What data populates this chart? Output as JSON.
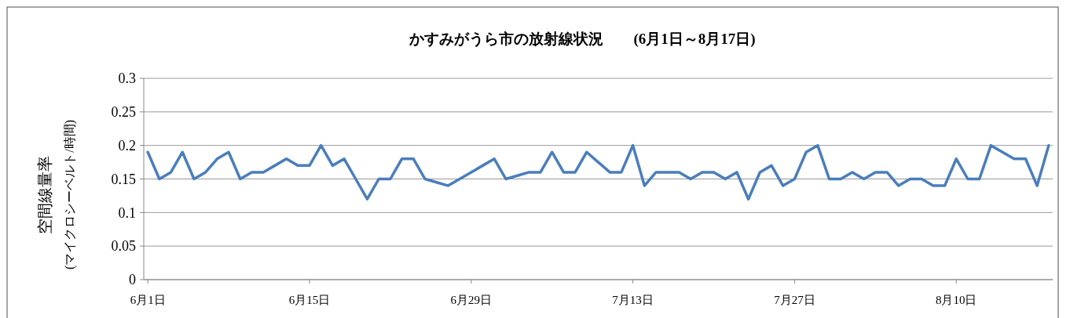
{
  "chart_data": {
    "type": "line",
    "title": "かすみがうら市の放射線状況　　(6月1日～8月17日)",
    "ylabel": "空間線量率\n(マイクロシーベルト/時間)",
    "categories": [
      "6月1日",
      null,
      null,
      null,
      null,
      null,
      null,
      null,
      null,
      null,
      null,
      null,
      null,
      null,
      "6月15日",
      null,
      null,
      null,
      null,
      null,
      null,
      null,
      null,
      null,
      null,
      null,
      null,
      null,
      "6月29日",
      null,
      null,
      null,
      null,
      null,
      null,
      null,
      null,
      null,
      null,
      null,
      null,
      null,
      "7月13日",
      null,
      null,
      null,
      null,
      null,
      null,
      null,
      null,
      null,
      null,
      null,
      null,
      null,
      "7月27日",
      null,
      null,
      null,
      null,
      null,
      null,
      null,
      null,
      null,
      null,
      null,
      null,
      null,
      "8月10日",
      null,
      null,
      null,
      null,
      null,
      null,
      null,
      null
    ],
    "series": [
      {
        "color": "#4a7ebb",
        "values": [
          0.19,
          0.15,
          0.16,
          0.19,
          0.15,
          0.16,
          0.18,
          0.19,
          0.15,
          0.16,
          0.16,
          0.17,
          0.18,
          0.17,
          0.17,
          0.2,
          0.17,
          0.18,
          0.15,
          0.12,
          0.15,
          0.15,
          0.18,
          0.18,
          0.15,
          0.145,
          0.14,
          0.15,
          0.16,
          0.17,
          0.18,
          0.15,
          0.155,
          0.16,
          0.16,
          0.19,
          0.16,
          0.16,
          0.19,
          0.175,
          0.16,
          0.16,
          0.2,
          0.14,
          0.16,
          0.16,
          0.16,
          0.15,
          0.16,
          0.16,
          0.15,
          0.16,
          0.12,
          0.16,
          0.17,
          0.14,
          0.15,
          0.19,
          0.2,
          0.15,
          0.15,
          0.16,
          0.15,
          0.16,
          0.16,
          0.14,
          0.15,
          0.15,
          0.14,
          0.14,
          0.18,
          0.15,
          0.15,
          0.2,
          0.19,
          0.18,
          0.18,
          0.14,
          0.2
        ]
      }
    ],
    "ylim": [
      0,
      0.3
    ],
    "yticks": [
      0,
      0.05,
      0.1,
      0.15,
      0.2,
      0.25,
      0.3
    ],
    "grid": "y",
    "marker": "none",
    "line_style": "solid"
  }
}
